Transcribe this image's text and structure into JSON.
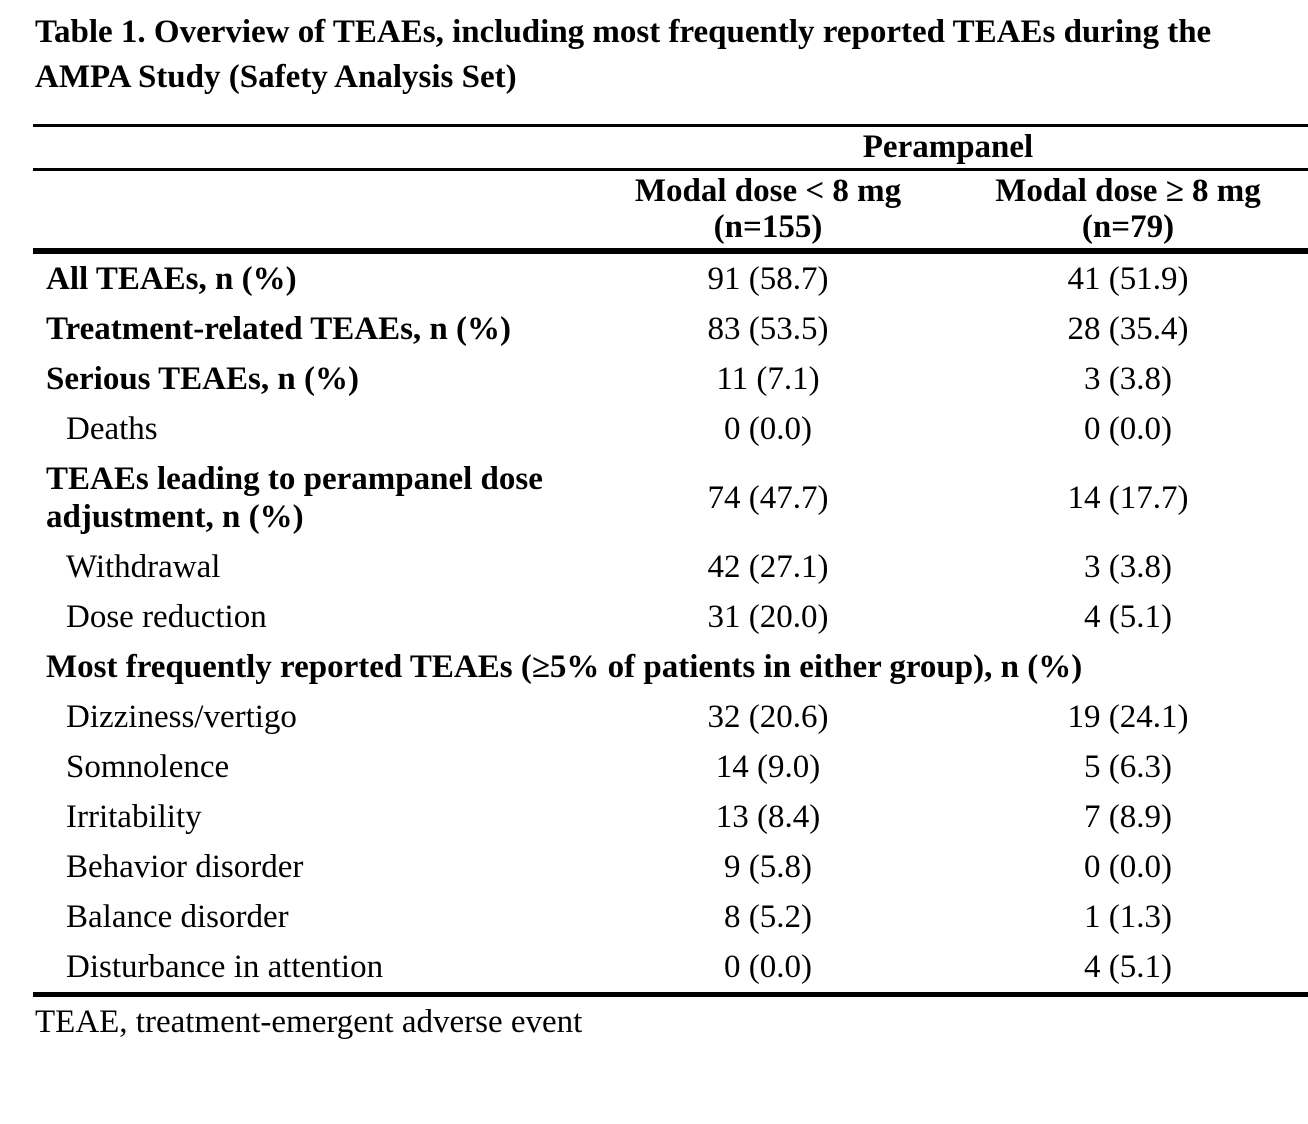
{
  "title": {
    "line1": "Table 1. Overview of TEAEs, including most frequently reported TEAEs during the",
    "line2": "AMPA Study (Safety Analysis Set)"
  },
  "table": {
    "group_header": "Perampanel",
    "columns": [
      {
        "line1": "Modal dose < 8 mg",
        "line2": "(n=155)"
      },
      {
        "line1": "Modal dose ≥ 8 mg",
        "line2": "(n=79)"
      }
    ],
    "rows": [
      {
        "label": "All TEAEs, n (%)",
        "values": [
          "91 (58.7)",
          "41 (51.9)"
        ]
      },
      {
        "label": "Treatment-related TEAEs, n (%)",
        "values": [
          "83 (53.5)",
          "28 (35.4)"
        ]
      },
      {
        "label": "Serious TEAEs, n (%)",
        "values": [
          "11 (7.1)",
          "3 (3.8)"
        ]
      },
      {
        "label": "Deaths",
        "values": [
          "0 (0.0)",
          "0 (0.0)"
        ]
      },
      {
        "label": "TEAEs leading to perampanel dose adjustment, n (%)",
        "values": [
          "74 (47.7)",
          "14 (17.7)"
        ]
      },
      {
        "label": "Withdrawal",
        "values": [
          "42 (27.1)",
          "3 (3.8)"
        ]
      },
      {
        "label": "Dose reduction",
        "values": [
          "31 (20.0)",
          "4 (5.1)"
        ]
      },
      {
        "label": "Most frequently reported TEAEs (≥5% of patients in either group), n (%)",
        "values": [
          "",
          ""
        ]
      },
      {
        "label": "Dizziness/vertigo",
        "values": [
          "32 (20.6)",
          "19 (24.1)"
        ]
      },
      {
        "label": "Somnolence",
        "values": [
          "14 (9.0)",
          "5 (6.3)"
        ]
      },
      {
        "label": "Irritability",
        "values": [
          "13 (8.4)",
          "7 (8.9)"
        ]
      },
      {
        "label": "Behavior disorder",
        "values": [
          "9 (5.8)",
          "0 (0.0)"
        ]
      },
      {
        "label": "Balance disorder",
        "values": [
          "8 (5.2)",
          "1 (1.3)"
        ]
      },
      {
        "label": "Disturbance in attention",
        "values": [
          "0 (0.0)",
          "4 (5.1)"
        ]
      }
    ]
  },
  "footnote": "TEAE, treatment-emergent adverse event"
}
